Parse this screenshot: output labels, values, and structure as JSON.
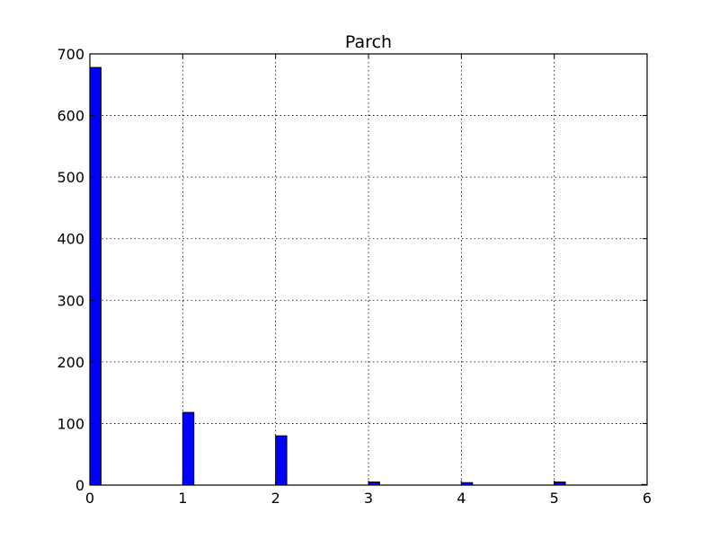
{
  "chart_data": {
    "type": "bar",
    "title": "Parch",
    "xlabel": "",
    "ylabel": "",
    "x": [
      0,
      1,
      2,
      3,
      4,
      5,
      6
    ],
    "values": [
      678,
      118,
      80,
      5,
      4,
      5,
      1
    ],
    "bin_width": 0.12,
    "xlim": [
      0,
      6
    ],
    "ylim": [
      0,
      700
    ],
    "xticks": [
      "0",
      "1",
      "2",
      "3",
      "4",
      "5",
      "6"
    ],
    "yticks": [
      "0",
      "100",
      "200",
      "300",
      "400",
      "500",
      "600",
      "700"
    ],
    "grid": true,
    "bar_color": "#0000ff",
    "edge_color": "#000000"
  }
}
